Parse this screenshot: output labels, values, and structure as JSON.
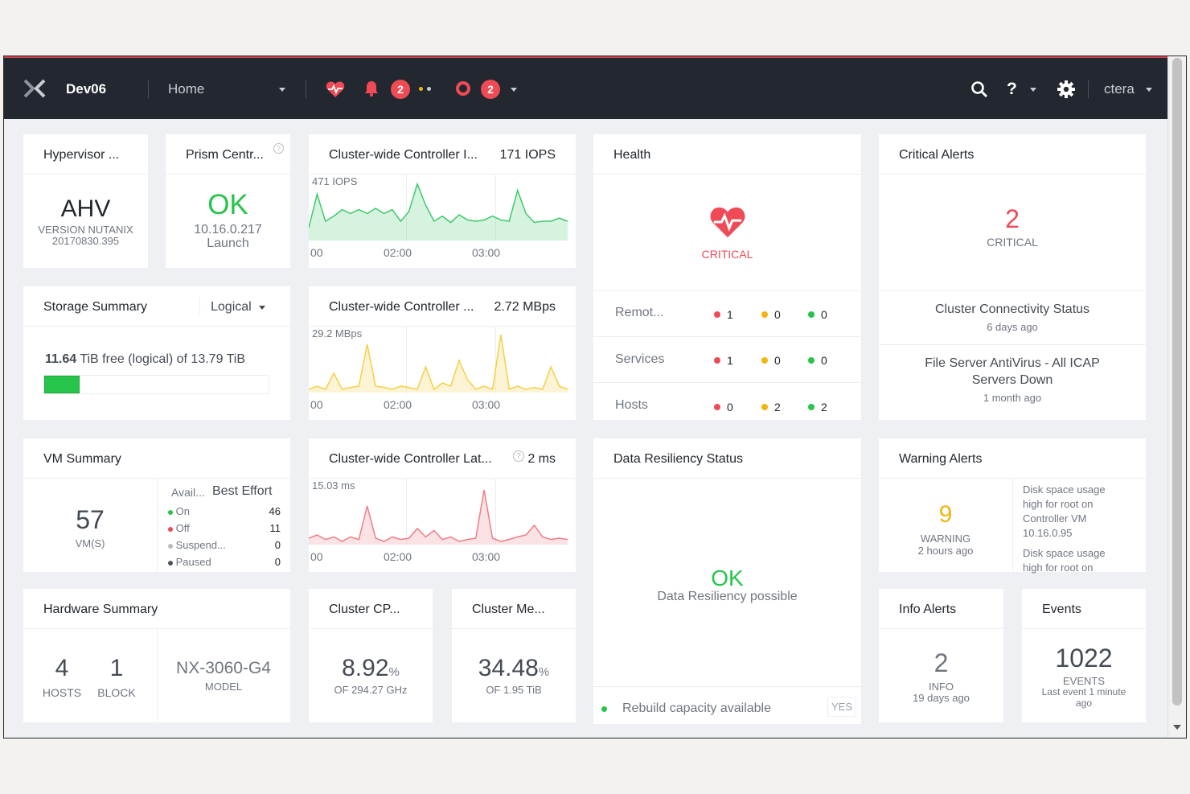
{
  "topbar": {
    "cluster_name": "Dev06",
    "nav_label": "Home",
    "alerts_count": "2",
    "tasks_count": "2",
    "user": "ctera",
    "help_symbol": "?"
  },
  "hypervisor": {
    "title": "Hypervisor ...",
    "value": "AHV",
    "version_line1": "VERSION NUTANIX",
    "version_line2": "20170830.395"
  },
  "prism": {
    "title": "Prism Centr...",
    "status": "OK",
    "ip": "10.16.0.217",
    "link": "Launch"
  },
  "iops_chart": {
    "title": "Cluster-wide Controller I...",
    "current": "171 IOPS",
    "peak": "471 IOPS",
    "ticks": [
      "00",
      "02:00",
      "03:00"
    ],
    "color": "#3ec96b"
  },
  "bw_chart": {
    "title": "Cluster-wide Controller ...",
    "current": "2.72 MBps",
    "peak": "29.2 MBps",
    "ticks": [
      "00",
      "02:00",
      "03:00"
    ],
    "color": "#f5cf45"
  },
  "lat_chart": {
    "title": "Cluster-wide Controller Lat...",
    "current": "2 ms",
    "peak": "15.03 ms",
    "ticks": [
      "00",
      "02:00",
      "03:00"
    ],
    "color": "#ef7d86"
  },
  "health": {
    "title": "Health",
    "status": "CRITICAL",
    "rows": [
      {
        "label": "Remot...",
        "critical": "1",
        "warning": "0",
        "good": "0"
      },
      {
        "label": "Services",
        "critical": "1",
        "warning": "0",
        "good": "0"
      },
      {
        "label": "Hosts",
        "critical": "0",
        "warning": "2",
        "good": "2"
      }
    ]
  },
  "critical_alerts": {
    "title": "Critical Alerts",
    "count": "2",
    "label": "CRITICAL",
    "items": [
      {
        "text": "Cluster Connectivity Status",
        "time": "6 days ago"
      },
      {
        "text_line1": "File Server AntiVirus - All ICAP",
        "text_line2": "Servers Down",
        "time": "1 month ago"
      }
    ]
  },
  "storage": {
    "title": "Storage Summary",
    "mode": "Logical",
    "free_value": "11.64",
    "free_text": "TiB free (logical) of 13.79 TiB",
    "used_fraction": 0.156
  },
  "vm_summary": {
    "title": "VM Summary",
    "count": "57",
    "unit": "VM(S)",
    "col1": "Avail...",
    "col2": "Best Effort",
    "rows": [
      {
        "label": "On",
        "value": "46",
        "color": "#26c44a"
      },
      {
        "label": "Off",
        "value": "11",
        "color": "#ef4a55"
      },
      {
        "label": "Suspend...",
        "value": "0",
        "color": "#b8bcc2"
      },
      {
        "label": "Paused",
        "value": "0",
        "color": "#4a5260"
      }
    ]
  },
  "resiliency": {
    "title": "Data Resiliency Status",
    "status": "OK",
    "subtitle": "Data Resiliency possible",
    "footer": "Rebuild capacity available",
    "footer_value": "YES"
  },
  "warning_alerts": {
    "title": "Warning Alerts",
    "count": "9",
    "label": "WARNING",
    "time": "2 hours ago",
    "items": [
      "Disk space usage",
      "high for root on",
      "Controller VM",
      "10.16.0.95",
      "Disk space usage",
      "high for root on"
    ]
  },
  "hardware": {
    "title": "Hardware Summary",
    "hosts": "4",
    "hosts_label": "HOSTS",
    "blocks": "1",
    "blocks_label": "BLOCK",
    "model": "NX-3060-G4",
    "model_label": "MODEL"
  },
  "cpu": {
    "title": "Cluster CP...",
    "value": "8.92",
    "unit": "%",
    "sub": "OF 294.27 GHz"
  },
  "mem": {
    "title": "Cluster Me...",
    "value": "34.48",
    "unit": "%",
    "sub": "OF 1.95 TiB"
  },
  "info_alerts": {
    "title": "Info Alerts",
    "count": "2",
    "label": "INFO",
    "time": "19 days ago"
  },
  "events": {
    "title": "Events",
    "count": "1022",
    "label": "EVENTS",
    "sub": "Last event 1 minute",
    "sub2": "ago"
  }
}
